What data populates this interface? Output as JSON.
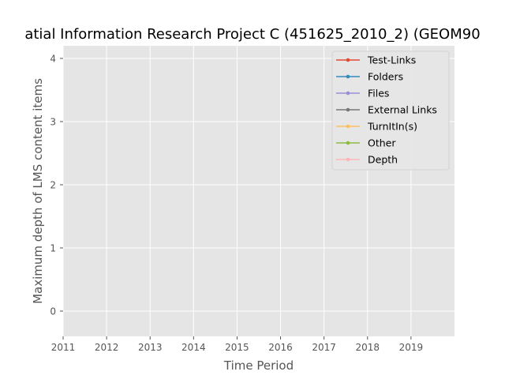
{
  "chart_data": {
    "type": "line",
    "title": "atial Information Research Project C (451625_2010_2) (GEOM90",
    "xlabel": "Time Period",
    "ylabel": "Maximum depth of LMS content items",
    "xlim": [
      2011,
      2020
    ],
    "ylim": [
      -0.4,
      4.2
    ],
    "x_ticks": [
      2011,
      2012,
      2013,
      2014,
      2015,
      2016,
      2017,
      2018,
      2019
    ],
    "y_ticks": [
      0,
      1,
      2,
      3,
      4
    ],
    "grid": true,
    "legend_position": "top-right",
    "series": [
      {
        "name": "Test-Links",
        "color": "#E24A33",
        "x": [],
        "y": []
      },
      {
        "name": "Folders",
        "color": "#348ABD",
        "x": [],
        "y": []
      },
      {
        "name": "Files",
        "color": "#988ED5",
        "x": [],
        "y": []
      },
      {
        "name": "External Links",
        "color": "#777777",
        "x": [],
        "y": []
      },
      {
        "name": "TurnItIn(s)",
        "color": "#FBC15E",
        "x": [],
        "y": []
      },
      {
        "name": "Other",
        "color": "#8EBA42",
        "x": [],
        "y": []
      },
      {
        "name": "Depth",
        "color": "#FFB5B8",
        "x": [],
        "y": []
      }
    ]
  }
}
